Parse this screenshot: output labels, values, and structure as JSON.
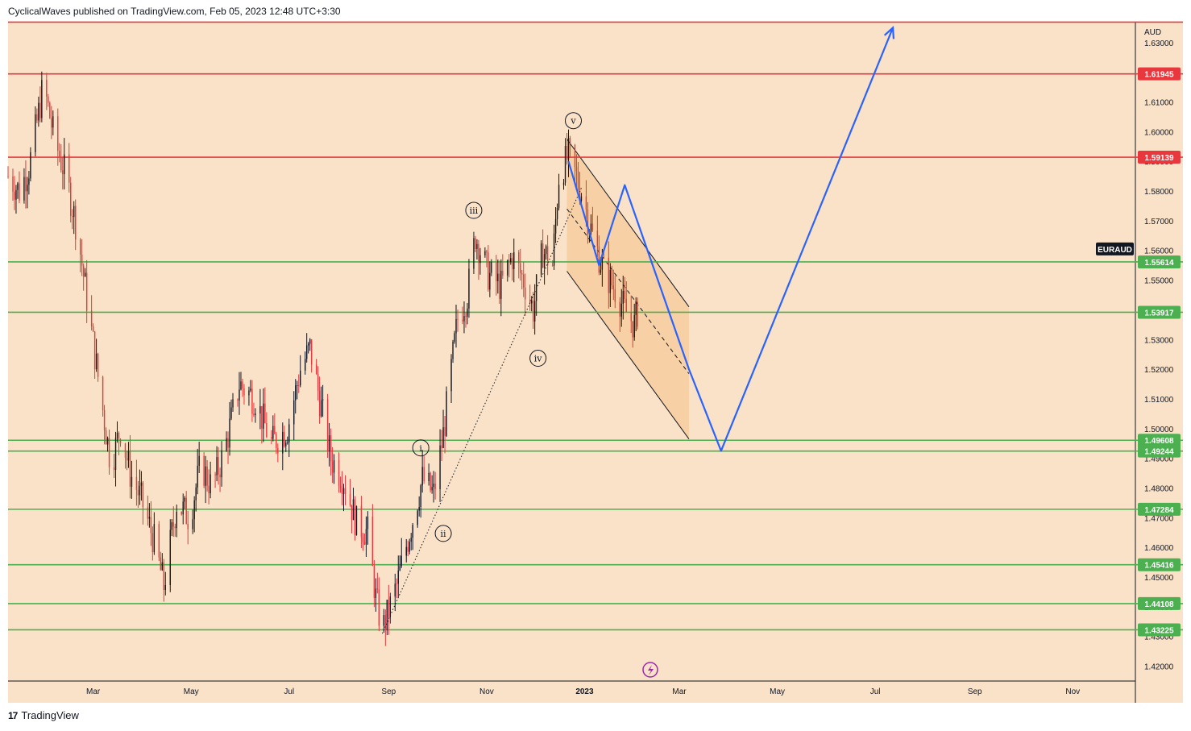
{
  "header": {
    "text": "CyclicalWaves published on TradingView.com, Feb 05, 2023 12:48 UTC+3:30"
  },
  "footer": {
    "logo": "17",
    "brand": "TradingView"
  },
  "colors": {
    "background": "#f9e2c7",
    "resistance": "#e8383d",
    "support": "#4caf50",
    "projection": "#2962ff",
    "candle_up": "#131722",
    "candle_down": "#e8383d",
    "channel_fill": "#f6c99a",
    "symbol_tag": "#131722"
  },
  "chart_data": {
    "type": "candlestick",
    "symbol": "EURAUD",
    "currency": "AUD",
    "title": "",
    "ylim": [
      1.415,
      1.637
    ],
    "y_ticks": [
      1.42,
      1.43,
      1.44,
      1.45,
      1.46,
      1.47,
      1.48,
      1.49,
      1.5,
      1.51,
      1.52,
      1.53,
      1.54,
      1.55,
      1.56,
      1.57,
      1.58,
      1.59,
      1.6,
      1.61,
      1.62,
      1.63
    ],
    "y_tick_labels": [
      "1.42000",
      "1.43000",
      "1.44000",
      "1.45000",
      "1.46000",
      "1.47000",
      "1.48000",
      "1.49000",
      "1.50000",
      "1.51000",
      "1.52000",
      "1.53000",
      "1.54000",
      "1.55000",
      "1.56000",
      "1.57000",
      "1.58000",
      "1.59000",
      "1.60000",
      "1.61000",
      "1.62000",
      "1.63000"
    ],
    "x_range": [
      "2022-01-07",
      "2023-12-10"
    ],
    "x_ticks": [
      {
        "date": "2022-03-01",
        "label": "Mar"
      },
      {
        "date": "2022-05-01",
        "label": "May"
      },
      {
        "date": "2022-07-01",
        "label": "Jul"
      },
      {
        "date": "2022-09-01",
        "label": "Sep"
      },
      {
        "date": "2022-11-01",
        "label": "Nov"
      },
      {
        "date": "2023-01-01",
        "label": "2023"
      },
      {
        "date": "2023-03-01",
        "label": "Mar"
      },
      {
        "date": "2023-05-01",
        "label": "May"
      },
      {
        "date": "2023-07-01",
        "label": "Jul"
      },
      {
        "date": "2023-09-01",
        "label": "Sep"
      },
      {
        "date": "2023-11-01",
        "label": "Nov"
      }
    ],
    "price_path": [
      [
        "2022-01-07",
        1.585
      ],
      [
        "2022-01-14",
        1.58
      ],
      [
        "2022-01-20",
        1.588
      ],
      [
        "2022-01-24",
        1.6
      ],
      [
        "2022-01-29",
        1.616
      ],
      [
        "2022-02-05",
        1.597
      ],
      [
        "2022-02-12",
        1.585
      ],
      [
        "2022-02-19",
        1.567
      ],
      [
        "2022-02-26",
        1.54
      ],
      [
        "2022-03-06",
        1.51
      ],
      [
        "2022-03-12",
        1.488
      ],
      [
        "2022-03-18",
        1.5
      ],
      [
        "2022-03-24",
        1.485
      ],
      [
        "2022-03-31",
        1.476
      ],
      [
        "2022-04-08",
        1.462
      ],
      [
        "2022-04-14",
        1.447
      ],
      [
        "2022-04-22",
        1.475
      ],
      [
        "2022-04-30",
        1.47
      ],
      [
        "2022-05-07",
        1.488
      ],
      [
        "2022-05-14",
        1.48
      ],
      [
        "2022-05-22",
        1.493
      ],
      [
        "2022-05-31",
        1.515
      ],
      [
        "2022-06-10",
        1.51
      ],
      [
        "2022-06-20",
        1.495
      ],
      [
        "2022-06-30",
        1.5
      ],
      [
        "2022-07-08",
        1.52
      ],
      [
        "2022-07-14",
        1.527
      ],
      [
        "2022-07-20",
        1.51
      ],
      [
        "2022-07-27",
        1.49
      ],
      [
        "2022-08-04",
        1.483
      ],
      [
        "2022-08-12",
        1.468
      ],
      [
        "2022-08-19",
        1.465
      ],
      [
        "2022-08-24",
        1.443
      ],
      [
        "2022-08-28",
        1.432
      ],
      [
        "2022-09-06",
        1.447
      ],
      [
        "2022-09-14",
        1.465
      ],
      [
        "2022-09-22",
        1.483
      ],
      [
        "2022-09-29",
        1.478
      ],
      [
        "2022-10-05",
        1.498
      ],
      [
        "2022-10-10",
        1.52
      ],
      [
        "2022-10-14",
        1.537
      ],
      [
        "2022-10-20",
        1.545
      ],
      [
        "2022-10-25",
        1.565
      ],
      [
        "2022-11-02",
        1.552
      ],
      [
        "2022-11-10",
        1.548
      ],
      [
        "2022-11-17",
        1.558
      ],
      [
        "2022-11-24",
        1.55
      ],
      [
        "2022-11-30",
        1.54
      ],
      [
        "2022-12-06",
        1.56
      ],
      [
        "2022-12-12",
        1.555
      ],
      [
        "2022-12-16",
        1.585
      ],
      [
        "2022-12-22",
        1.592
      ],
      [
        "2022-12-30",
        1.58
      ],
      [
        "2023-01-06",
        1.565
      ],
      [
        "2023-01-13",
        1.553
      ],
      [
        "2023-01-20",
        1.547
      ],
      [
        "2023-01-26",
        1.54
      ],
      [
        "2023-02-01",
        1.535
      ],
      [
        "2023-02-05",
        1.544
      ]
    ],
    "horizontal_levels": [
      {
        "value": 1.63689,
        "label": "",
        "kind": "resistance"
      },
      {
        "value": 1.61945,
        "label": "1.61945",
        "kind": "resistance"
      },
      {
        "value": 1.59139,
        "label": "1.59139",
        "kind": "resistance"
      },
      {
        "value": 1.55614,
        "label": "1.55614",
        "kind": "support"
      },
      {
        "value": 1.53917,
        "label": "1.53917",
        "kind": "support"
      },
      {
        "value": 1.49608,
        "label": "1.49608",
        "kind": "support"
      },
      {
        "value": 1.49244,
        "label": "1.49244",
        "kind": "support"
      },
      {
        "value": 1.47284,
        "label": "1.47284",
        "kind": "support"
      },
      {
        "value": 1.45416,
        "label": "1.45416",
        "kind": "support"
      },
      {
        "value": 1.44108,
        "label": "1.44108",
        "kind": "support"
      },
      {
        "value": 1.43225,
        "label": "1.43225",
        "kind": "support"
      }
    ],
    "current_price_tag": {
      "label": "EURAUD",
      "value": 1.5605
    },
    "wave_labels": [
      {
        "label": "i",
        "date": "2022-09-21",
        "value": 1.4935
      },
      {
        "label": "ii",
        "date": "2022-10-05",
        "value": 1.4647
      },
      {
        "label": "iii",
        "date": "2022-10-24",
        "value": 1.5735
      },
      {
        "label": "iv",
        "date": "2022-12-03",
        "value": 1.5237
      },
      {
        "label": "v",
        "date": "2022-12-25",
        "value": 1.6037
      }
    ],
    "trendline": [
      [
        "2022-08-28",
        1.431
      ],
      [
        "2022-12-30",
        1.581
      ]
    ],
    "channel": {
      "upper": [
        [
          "2022-12-21",
          1.5975
        ],
        [
          "2023-03-07",
          1.541
        ]
      ],
      "lower": [
        [
          "2022-12-21",
          1.553
        ],
        [
          "2023-03-07",
          1.4965
        ]
      ],
      "mid": [
        [
          "2022-12-21",
          1.574
        ],
        [
          "2023-03-07",
          1.5185
        ]
      ]
    },
    "projection_path": [
      [
        "2022-12-22",
        1.59
      ],
      [
        "2023-01-10",
        1.555
      ],
      [
        "2023-01-26",
        1.582
      ],
      [
        "2023-03-07",
        1.52
      ],
      [
        "2023-03-27",
        1.4925
      ],
      [
        "2023-07-12",
        1.635
      ]
    ],
    "grid": false,
    "legend": "none"
  }
}
